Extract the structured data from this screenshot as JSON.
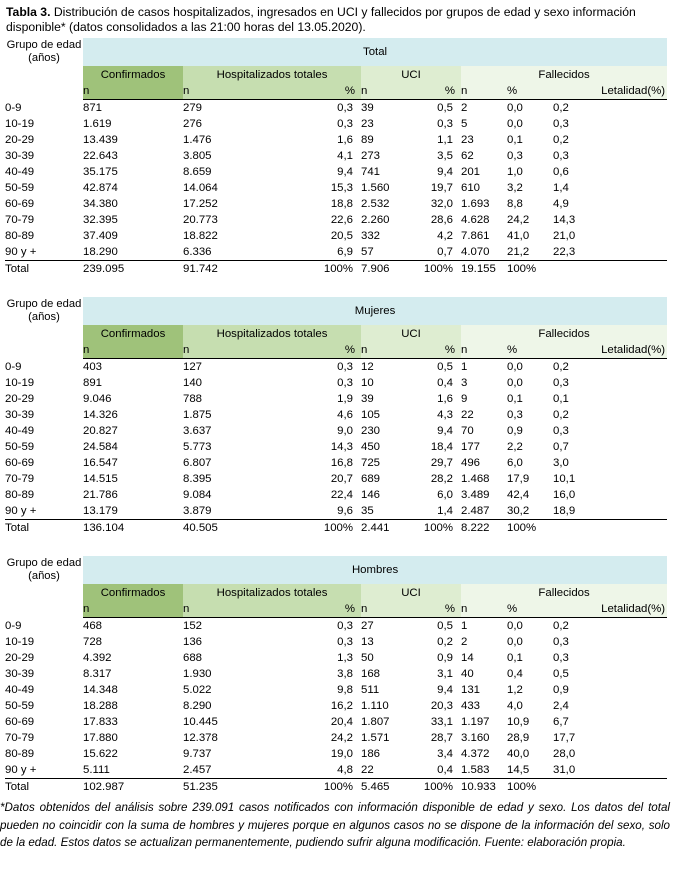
{
  "caption": {
    "label": "Tabla 3.",
    "text": "Distribución de casos hospitalizados, ingresados en UCI y fallecidos por grupos de edad y sexo información disponible* (datos consolidados a las 21:00 horas del 13.05.2020)."
  },
  "headers": {
    "age_group": "Grupo de edad (años)",
    "confirmados": "Confirmados",
    "hospitalizados": "Hospitalizados totales",
    "uci": "UCI",
    "fallecidos": "Fallecidos",
    "n": "n",
    "pct": "%",
    "letalidad": "Letalidad(%)"
  },
  "tables": [
    {
      "title": "Total",
      "rows": [
        [
          "0-9",
          "871",
          "279",
          "0,3",
          "39",
          "0,5",
          "2",
          "0,0",
          "0,2"
        ],
        [
          "10-19",
          "1.619",
          "276",
          "0,3",
          "23",
          "0,3",
          "5",
          "0,0",
          "0,3"
        ],
        [
          "20-29",
          "13.439",
          "1.476",
          "1,6",
          "89",
          "1,1",
          "23",
          "0,1",
          "0,2"
        ],
        [
          "30-39",
          "22.643",
          "3.805",
          "4,1",
          "273",
          "3,5",
          "62",
          "0,3",
          "0,3"
        ],
        [
          "40-49",
          "35.175",
          "8.659",
          "9,4",
          "741",
          "9,4",
          "201",
          "1,0",
          "0,6"
        ],
        [
          "50-59",
          "42.874",
          "14.064",
          "15,3",
          "1.560",
          "19,7",
          "610",
          "3,2",
          "1,4"
        ],
        [
          "60-69",
          "34.380",
          "17.252",
          "18,8",
          "2.532",
          "32,0",
          "1.693",
          "8,8",
          "4,9"
        ],
        [
          "70-79",
          "32.395",
          "20.773",
          "22,6",
          "2.260",
          "28,6",
          "4.628",
          "24,2",
          "14,3"
        ],
        [
          "80-89",
          "37.409",
          "18.822",
          "20,5",
          "332",
          "4,2",
          "7.861",
          "41,0",
          "21,0"
        ],
        [
          "90 y +",
          "18.290",
          "6.336",
          "6,9",
          "57",
          "0,7",
          "4.070",
          "21,2",
          "22,3"
        ]
      ],
      "total": [
        "Total",
        "239.095",
        "91.742",
        "100%",
        "7.906",
        "100%",
        "19.155",
        "100%",
        ""
      ]
    },
    {
      "title": "Mujeres",
      "rows": [
        [
          "0-9",
          "403",
          "127",
          "0,3",
          "12",
          "0,5",
          "1",
          "0,0",
          "0,2"
        ],
        [
          "10-19",
          "891",
          "140",
          "0,3",
          "10",
          "0,4",
          "3",
          "0,0",
          "0,3"
        ],
        [
          "20-29",
          "9.046",
          "788",
          "1,9",
          "39",
          "1,6",
          "9",
          "0,1",
          "0,1"
        ],
        [
          "30-39",
          "14.326",
          "1.875",
          "4,6",
          "105",
          "4,3",
          "22",
          "0,3",
          "0,2"
        ],
        [
          "40-49",
          "20.827",
          "3.637",
          "9,0",
          "230",
          "9,4",
          "70",
          "0,9",
          "0,3"
        ],
        [
          "50-59",
          "24.584",
          "5.773",
          "14,3",
          "450",
          "18,4",
          "177",
          "2,2",
          "0,7"
        ],
        [
          "60-69",
          "16.547",
          "6.807",
          "16,8",
          "725",
          "29,7",
          "496",
          "6,0",
          "3,0"
        ],
        [
          "70-79",
          "14.515",
          "8.395",
          "20,7",
          "689",
          "28,2",
          "1.468",
          "17,9",
          "10,1"
        ],
        [
          "80-89",
          "21.786",
          "9.084",
          "22,4",
          "146",
          "6,0",
          "3.489",
          "42,4",
          "16,0"
        ],
        [
          "90 y +",
          "13.179",
          "3.879",
          "9,6",
          "35",
          "1,4",
          "2.487",
          "30,2",
          "18,9"
        ]
      ],
      "total": [
        "Total",
        "136.104",
        "40.505",
        "100%",
        "2.441",
        "100%",
        "8.222",
        "100%",
        ""
      ]
    },
    {
      "title": "Hombres",
      "rows": [
        [
          "0-9",
          "468",
          "152",
          "0,3",
          "27",
          "0,5",
          "1",
          "0,0",
          "0,2"
        ],
        [
          "10-19",
          "728",
          "136",
          "0,3",
          "13",
          "0,2",
          "2",
          "0,0",
          "0,3"
        ],
        [
          "20-29",
          "4.392",
          "688",
          "1,3",
          "50",
          "0,9",
          "14",
          "0,1",
          "0,3"
        ],
        [
          "30-39",
          "8.317",
          "1.930",
          "3,8",
          "168",
          "3,1",
          "40",
          "0,4",
          "0,5"
        ],
        [
          "40-49",
          "14.348",
          "5.022",
          "9,8",
          "511",
          "9,4",
          "131",
          "1,2",
          "0,9"
        ],
        [
          "50-59",
          "18.288",
          "8.290",
          "16,2",
          "1.110",
          "20,3",
          "433",
          "4,0",
          "2,4"
        ],
        [
          "60-69",
          "17.833",
          "10.445",
          "20,4",
          "1.807",
          "33,1",
          "1.197",
          "10,9",
          "6,7"
        ],
        [
          "70-79",
          "17.880",
          "12.378",
          "24,2",
          "1.571",
          "28,7",
          "3.160",
          "28,9",
          "17,7"
        ],
        [
          "80-89",
          "15.622",
          "9.737",
          "19,0",
          "186",
          "3,4",
          "4.372",
          "40,0",
          "28,0"
        ],
        [
          "90 y +",
          "5.111",
          "2.457",
          "4,8",
          "22",
          "0,4",
          "1.583",
          "14,5",
          "31,0"
        ]
      ],
      "total": [
        "Total",
        "102.987",
        "51.235",
        "100%",
        "5.465",
        "100%",
        "10.933",
        "100%",
        ""
      ]
    }
  ],
  "footnote": "*Datos obtenidos del análisis sobre 239.091 casos notificados con información disponible de edad y sexo. Los datos del total pueden no coincidir con la suma de hombres y mujeres porque en algunos casos no se dispone de la información del sexo, solo de la edad. Estos datos se actualizan permanentemente, pudiendo sufrir alguna modificación. Fuente: elaboración propia."
}
